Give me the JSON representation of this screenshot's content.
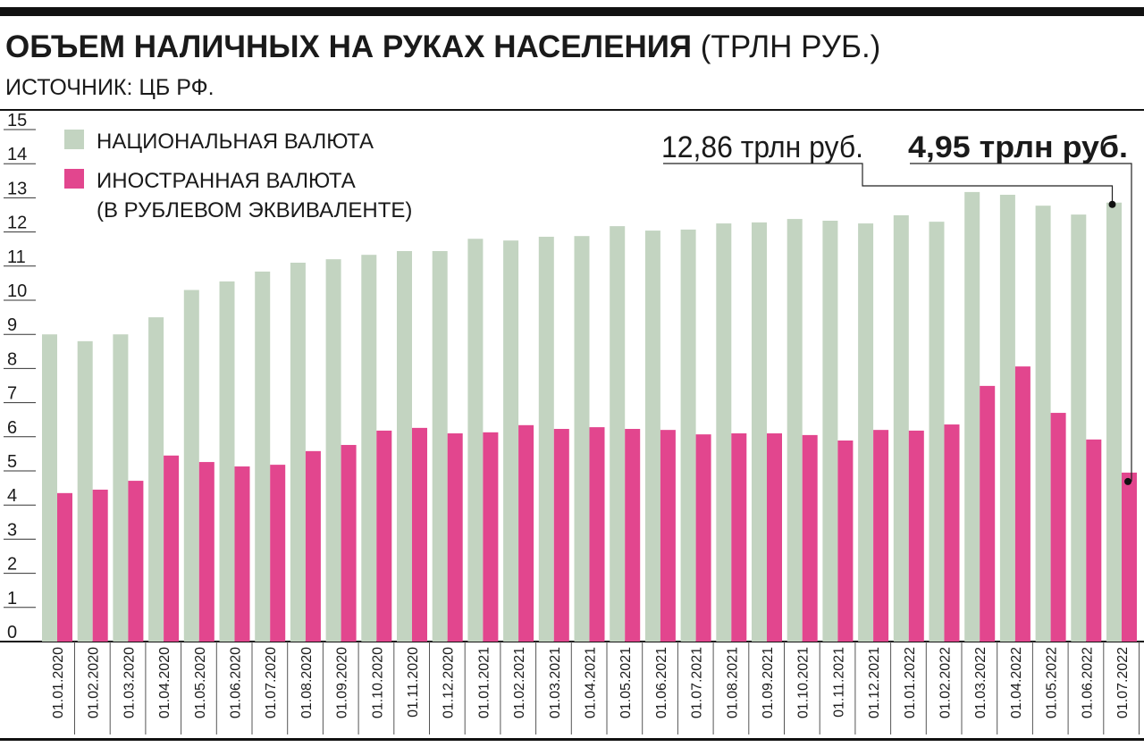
{
  "chart_data": {
    "type": "bar",
    "title": "ОБЪЕМ НАЛИЧНЫХ НА РУКАХ НАСЕЛЕНИЯ",
    "title_unit": "(ТРЛН РУБ.)",
    "subtitle": "ИСТОЧНИК: ЦБ РФ.",
    "categories": [
      "01.01.2020",
      "01.02.2020",
      "01.03.2020",
      "01.04.2020",
      "01.05.2020",
      "01.06.2020",
      "01.07.2020",
      "01.08.2020",
      "01.09.2020",
      "01.10.2020",
      "01.11.2020",
      "01.12.2020",
      "01.01.2021",
      "01.02.2021",
      "01.03.2021",
      "01.04.2021",
      "01.05.2021",
      "01.06.2021",
      "01.07.2021",
      "01.08.2021",
      "01.09.2021",
      "01.10.2021",
      "01.11.2021",
      "01.12.2021",
      "01.01.2022",
      "01.02.2022",
      "01.03.2022",
      "01.04.2022",
      "01.05.2022",
      "01.06.2022",
      "01.07.2022"
    ],
    "series": [
      {
        "name": "НАЦИОНАЛЬНАЯ ВАЛЮТА",
        "color": "#c3d4c1",
        "label_color": "#6b8c68",
        "values": [
          9.0,
          8.8,
          9.0,
          9.5,
          10.3,
          10.55,
          10.84,
          11.1,
          11.2,
          11.33,
          11.44,
          11.44,
          11.8,
          11.75,
          11.86,
          11.88,
          12.17,
          12.04,
          12.07,
          12.25,
          12.28,
          12.38,
          12.33,
          12.25,
          12.49,
          12.3,
          13.17,
          13.09,
          12.77,
          12.51,
          12.86
        ],
        "value_labels": [
          null,
          null,
          null,
          null,
          null,
          null,
          null,
          null,
          null,
          null,
          null,
          null,
          null,
          null,
          null,
          null,
          null,
          null,
          null,
          null,
          null,
          null,
          null,
          null,
          null,
          null,
          null,
          null,
          null,
          null,
          "12,86 трлн руб."
        ]
      },
      {
        "name": "ИНОСТРАННАЯ ВАЛЮТА\n(В РУБЛЕВОМ ЭКВИВАЛЕНТЕ)",
        "color": "#e2468e",
        "label_color": "#e1344f",
        "values": [
          4.35,
          4.45,
          4.71,
          5.45,
          5.26,
          5.13,
          5.18,
          5.58,
          5.76,
          6.18,
          6.26,
          6.1,
          6.13,
          6.34,
          6.23,
          6.28,
          6.23,
          6.2,
          6.07,
          6.1,
          6.1,
          6.05,
          5.89,
          6.2,
          6.18,
          6.36,
          7.49,
          8.06,
          6.7,
          5.92,
          4.95
        ],
        "value_labels": [
          null,
          null,
          null,
          null,
          null,
          null,
          null,
          null,
          null,
          null,
          null,
          null,
          null,
          null,
          null,
          null,
          null,
          null,
          null,
          null,
          null,
          null,
          null,
          null,
          null,
          null,
          null,
          null,
          null,
          null,
          "4,95 трлн руб."
        ]
      }
    ],
    "ylim": [
      0,
      15
    ],
    "yticks": [
      0,
      1,
      2,
      3,
      4,
      5,
      6,
      7,
      8,
      9,
      10,
      11,
      12,
      13,
      14,
      15
    ],
    "legend": "top-left"
  }
}
